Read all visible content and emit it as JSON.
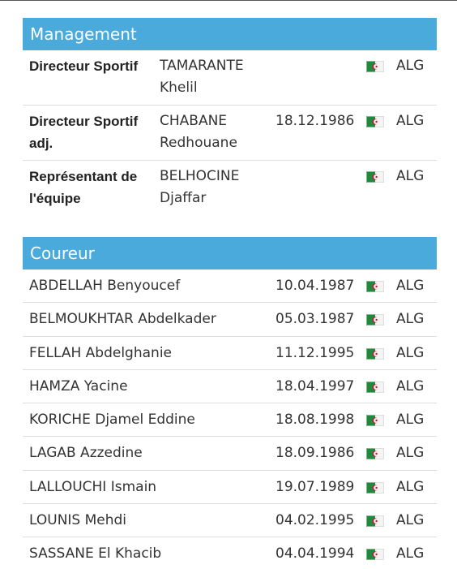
{
  "management": {
    "title": "Management",
    "rows": [
      {
        "role": "Directeur Sportif",
        "name": "TAMARANTE Khelil",
        "dob": "",
        "nat": "ALG"
      },
      {
        "role": "Directeur Sportif adj.",
        "name": "CHABANE Redhouane",
        "dob": "18.12.1986",
        "nat": "ALG"
      },
      {
        "role": "Représentant de l'équipe",
        "name": "BELHOCINE Djaffar",
        "dob": "",
        "nat": "ALG"
      }
    ]
  },
  "riders": {
    "title": "Coureur",
    "rows": [
      {
        "name": "ABDELLAH Benyoucef",
        "dob": "10.04.1987",
        "nat": "ALG"
      },
      {
        "name": "BELMOUKHTAR Abdelkader",
        "dob": "05.03.1987",
        "nat": "ALG"
      },
      {
        "name": "FELLAH Abdelghanie",
        "dob": "11.12.1995",
        "nat": "ALG"
      },
      {
        "name": "HAMZA Yacine",
        "dob": "18.04.1997",
        "nat": "ALG"
      },
      {
        "name": "KORICHE Djamel Eddine",
        "dob": "18.08.1998",
        "nat": "ALG"
      },
      {
        "name": "LAGAB Azzedine",
        "dob": "18.09.1986",
        "nat": "ALG"
      },
      {
        "name": "LALLOUCHI Ismain",
        "dob": "19.07.1989",
        "nat": "ALG"
      },
      {
        "name": "LOUNIS Mehdi",
        "dob": "04.02.1995",
        "nat": "ALG"
      },
      {
        "name": "SASSANE El Khacib",
        "dob": "04.04.1994",
        "nat": "ALG"
      }
    ]
  },
  "icons": {
    "flag": "algeria-flag-icon"
  },
  "colors": {
    "header_bg": "#4aaadb",
    "header_text": "#ffffff",
    "divider": "#dddddd"
  }
}
